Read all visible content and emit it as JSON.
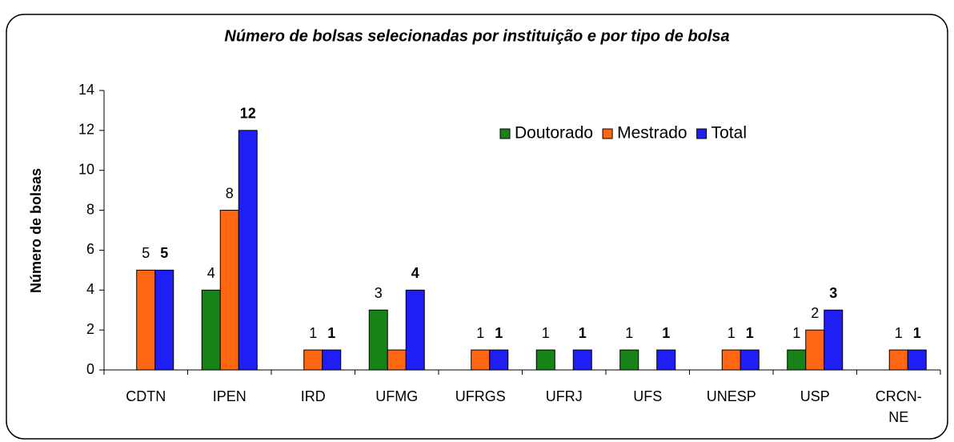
{
  "chart_data": {
    "type": "bar",
    "title": "Número de bolsas selecionadas por instituição e por tipo de bolsa",
    "y_label": "Número de bolsas",
    "categories": [
      "CDTN",
      "IPEN",
      "IRD",
      "UFMG",
      "UFRGS",
      "UFRJ",
      "UFS",
      "UNESP",
      "USP",
      "CRCN-NE"
    ],
    "series": [
      {
        "name": "Doutorado",
        "color": "#178217",
        "values": [
          null,
          4,
          null,
          3,
          null,
          1,
          1,
          null,
          1,
          null
        ],
        "value_labels": [
          null,
          "4",
          null,
          "3",
          null,
          "1",
          "1",
          null,
          "1",
          null
        ]
      },
      {
        "name": "Mestrado",
        "color": "#ff6611",
        "values": [
          5,
          8,
          1,
          1,
          1,
          null,
          null,
          1,
          2,
          1
        ],
        "value_labels": [
          "5",
          "8",
          "1",
          null,
          "1",
          null,
          null,
          "1",
          "2",
          "1"
        ]
      },
      {
        "name": "Total",
        "color": "#1f1ff5",
        "values": [
          5,
          12,
          1,
          4,
          1,
          1,
          1,
          1,
          3,
          1
        ],
        "value_labels": [
          "5",
          "12",
          "1",
          "4",
          "1",
          "1",
          "1",
          "1",
          "3",
          "1"
        ]
      }
    ],
    "ylim": [
      0,
      14
    ],
    "yticks": [
      0,
      2,
      4,
      6,
      8,
      10,
      12,
      14
    ],
    "grid": false,
    "legend": "top-right"
  }
}
